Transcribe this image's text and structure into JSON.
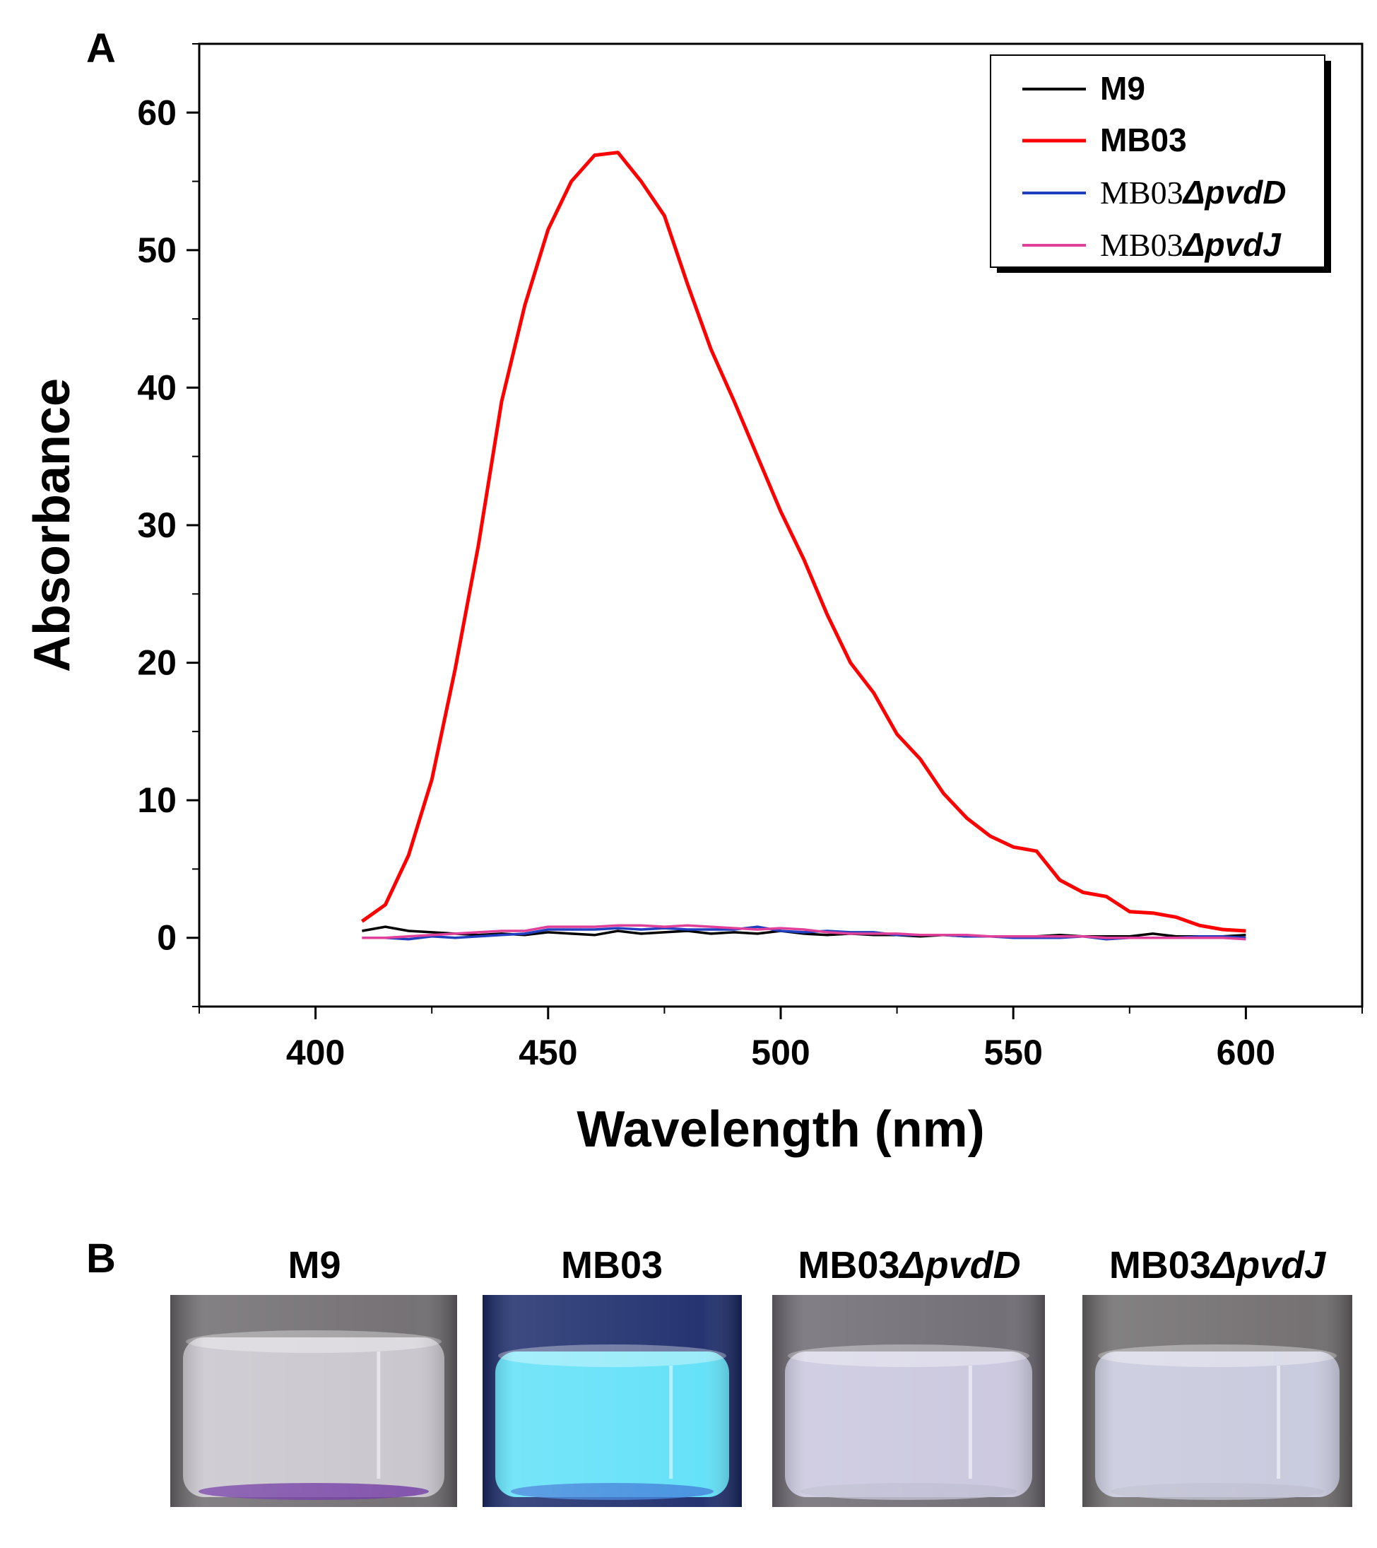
{
  "chart_data": {
    "type": "line",
    "panel_a_label": "A",
    "panel_b_label": "B",
    "xlabel": "Wavelength (nm)",
    "ylabel": "Absorbance",
    "xlim": [
      375,
      625
    ],
    "ylim": [
      -5,
      65
    ],
    "xticks": [
      400,
      450,
      500,
      550,
      600
    ],
    "yticks": [
      0,
      10,
      20,
      30,
      40,
      50,
      60
    ],
    "legend_position": "top-right",
    "series": [
      {
        "name": "M9",
        "color": "#000000",
        "x": [
          410,
          415,
          420,
          425,
          430,
          435,
          440,
          445,
          450,
          455,
          460,
          465,
          470,
          475,
          480,
          485,
          490,
          495,
          500,
          505,
          510,
          515,
          520,
          525,
          530,
          535,
          540,
          545,
          550,
          555,
          560,
          565,
          570,
          575,
          580,
          585,
          590,
          595,
          600
        ],
        "y": [
          0.5,
          0.8,
          0.5,
          0.4,
          0.3,
          0.2,
          0.3,
          0.2,
          0.4,
          0.3,
          0.2,
          0.5,
          0.3,
          0.4,
          0.5,
          0.3,
          0.4,
          0.3,
          0.5,
          0.3,
          0.2,
          0.3,
          0.2,
          0.2,
          0.1,
          0.2,
          0.1,
          0.1,
          0.1,
          0.1,
          0.2,
          0.1,
          0.1,
          0.1,
          0.3,
          0.1,
          0.1,
          0.1,
          0.2
        ]
      },
      {
        "name": "MB03",
        "color": "#ff0000",
        "x": [
          410,
          415,
          420,
          425,
          430,
          435,
          440,
          445,
          450,
          455,
          460,
          465,
          470,
          475,
          480,
          485,
          490,
          495,
          500,
          505,
          510,
          515,
          520,
          525,
          530,
          535,
          540,
          545,
          550,
          555,
          560,
          565,
          570,
          575,
          580,
          585,
          590,
          595,
          600
        ],
        "y": [
          1.2,
          2.4,
          6.0,
          11.5,
          19.5,
          28.5,
          39.0,
          46.0,
          51.5,
          55.0,
          56.9,
          57.1,
          55.0,
          52.5,
          47.5,
          42.8,
          39.0,
          35.0,
          31.0,
          27.5,
          23.5,
          20.0,
          17.8,
          14.8,
          13.0,
          10.5,
          8.7,
          7.4,
          6.6,
          6.3,
          4.2,
          3.3,
          3.0,
          1.9,
          1.8,
          1.5,
          0.9,
          0.6,
          0.5
        ]
      },
      {
        "name_prefix": "MB03",
        "name_suffix": "Δ",
        "name_gene": "pvdD",
        "color": "#1f3fbf",
        "x": [
          410,
          415,
          420,
          425,
          430,
          435,
          440,
          445,
          450,
          455,
          460,
          465,
          470,
          475,
          480,
          485,
          490,
          495,
          500,
          505,
          510,
          515,
          520,
          525,
          530,
          535,
          540,
          545,
          550,
          555,
          560,
          565,
          570,
          575,
          580,
          585,
          590,
          595,
          600
        ],
        "y": [
          0.0,
          0.0,
          -0.1,
          0.1,
          0.0,
          0.1,
          0.2,
          0.3,
          0.6,
          0.6,
          0.6,
          0.7,
          0.6,
          0.7,
          0.6,
          0.6,
          0.6,
          0.8,
          0.5,
          0.4,
          0.5,
          0.4,
          0.4,
          0.2,
          0.2,
          0.2,
          0.1,
          0.1,
          0.0,
          0.0,
          0.0,
          0.1,
          -0.1,
          0.0,
          0.0,
          0.0,
          0.1,
          0.1,
          0.0
        ]
      },
      {
        "name_prefix": "MB03",
        "name_suffix": "Δ",
        "name_gene": "pvdJ",
        "color": "#e0409a",
        "x": [
          410,
          415,
          420,
          425,
          430,
          435,
          440,
          445,
          450,
          455,
          460,
          465,
          470,
          475,
          480,
          485,
          490,
          495,
          500,
          505,
          510,
          515,
          520,
          525,
          530,
          535,
          540,
          545,
          550,
          555,
          560,
          565,
          570,
          575,
          580,
          585,
          590,
          595,
          600
        ],
        "y": [
          0.0,
          0.0,
          0.1,
          0.2,
          0.3,
          0.4,
          0.5,
          0.5,
          0.8,
          0.8,
          0.8,
          0.9,
          0.9,
          0.8,
          0.9,
          0.8,
          0.7,
          0.6,
          0.7,
          0.6,
          0.4,
          0.3,
          0.3,
          0.3,
          0.2,
          0.2,
          0.2,
          0.1,
          0.1,
          0.1,
          0.1,
          0.1,
          0.0,
          0.0,
          0.0,
          0.0,
          0.0,
          0.0,
          -0.1
        ]
      }
    ]
  },
  "vials": [
    {
      "prefix": "M9",
      "delta": "",
      "gene": "",
      "liquid": "#c8c4cc",
      "glass": "#6e6a6e",
      "bottom": "#6a2fa0"
    },
    {
      "prefix": "MB03",
      "delta": "",
      "gene": "",
      "liquid": "#5ee0f8",
      "glass": "#1a2a6a",
      "bottom": "#3a7ad8"
    },
    {
      "prefix": "MB03",
      "delta": "Δ",
      "gene": "pvdD",
      "liquid": "#c9c6de",
      "glass": "#6c6870",
      "bottom": "#bdbad0"
    },
    {
      "prefix": "MB03",
      "delta": "Δ",
      "gene": "pvdJ",
      "liquid": "#c6c8dc",
      "glass": "#6e6a6c",
      "bottom": "#bcbdd0"
    }
  ]
}
